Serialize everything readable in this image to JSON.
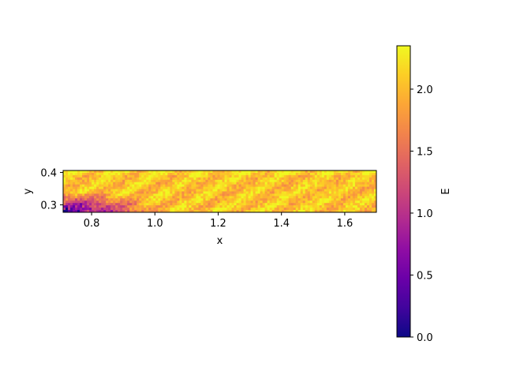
{
  "chart_data": {
    "type": "heatmap",
    "xlabel": "x",
    "ylabel": "y",
    "xlim": [
      0.71,
      1.7
    ],
    "ylim": [
      0.277,
      0.406
    ],
    "xticks": [
      0.8,
      1.0,
      1.2,
      1.4,
      1.6
    ],
    "xtick_labels": [
      "0.8",
      "1.0",
      "1.2",
      "1.4",
      "1.6"
    ],
    "yticks": [
      0.3,
      0.4
    ],
    "ytick_labels": [
      "0.3",
      "0.4"
    ],
    "colormap": "plasma",
    "colorbar": {
      "label": "E",
      "range": [
        0.0,
        2.35
      ],
      "ticks": [
        0.0,
        0.5,
        1.0,
        1.5,
        2.0
      ],
      "tick_labels": [
        "0.0",
        "0.5",
        "1.0",
        "1.5",
        "2.0"
      ]
    },
    "grid": false,
    "field_description": "Noisy field mostly near E≈2.0–2.3 (yellow-orange), with a low-energy region (E≈0.3–1.2, purple) in the lower-left corner near x≈0.71–0.95, y≈0.28–0.32."
  }
}
